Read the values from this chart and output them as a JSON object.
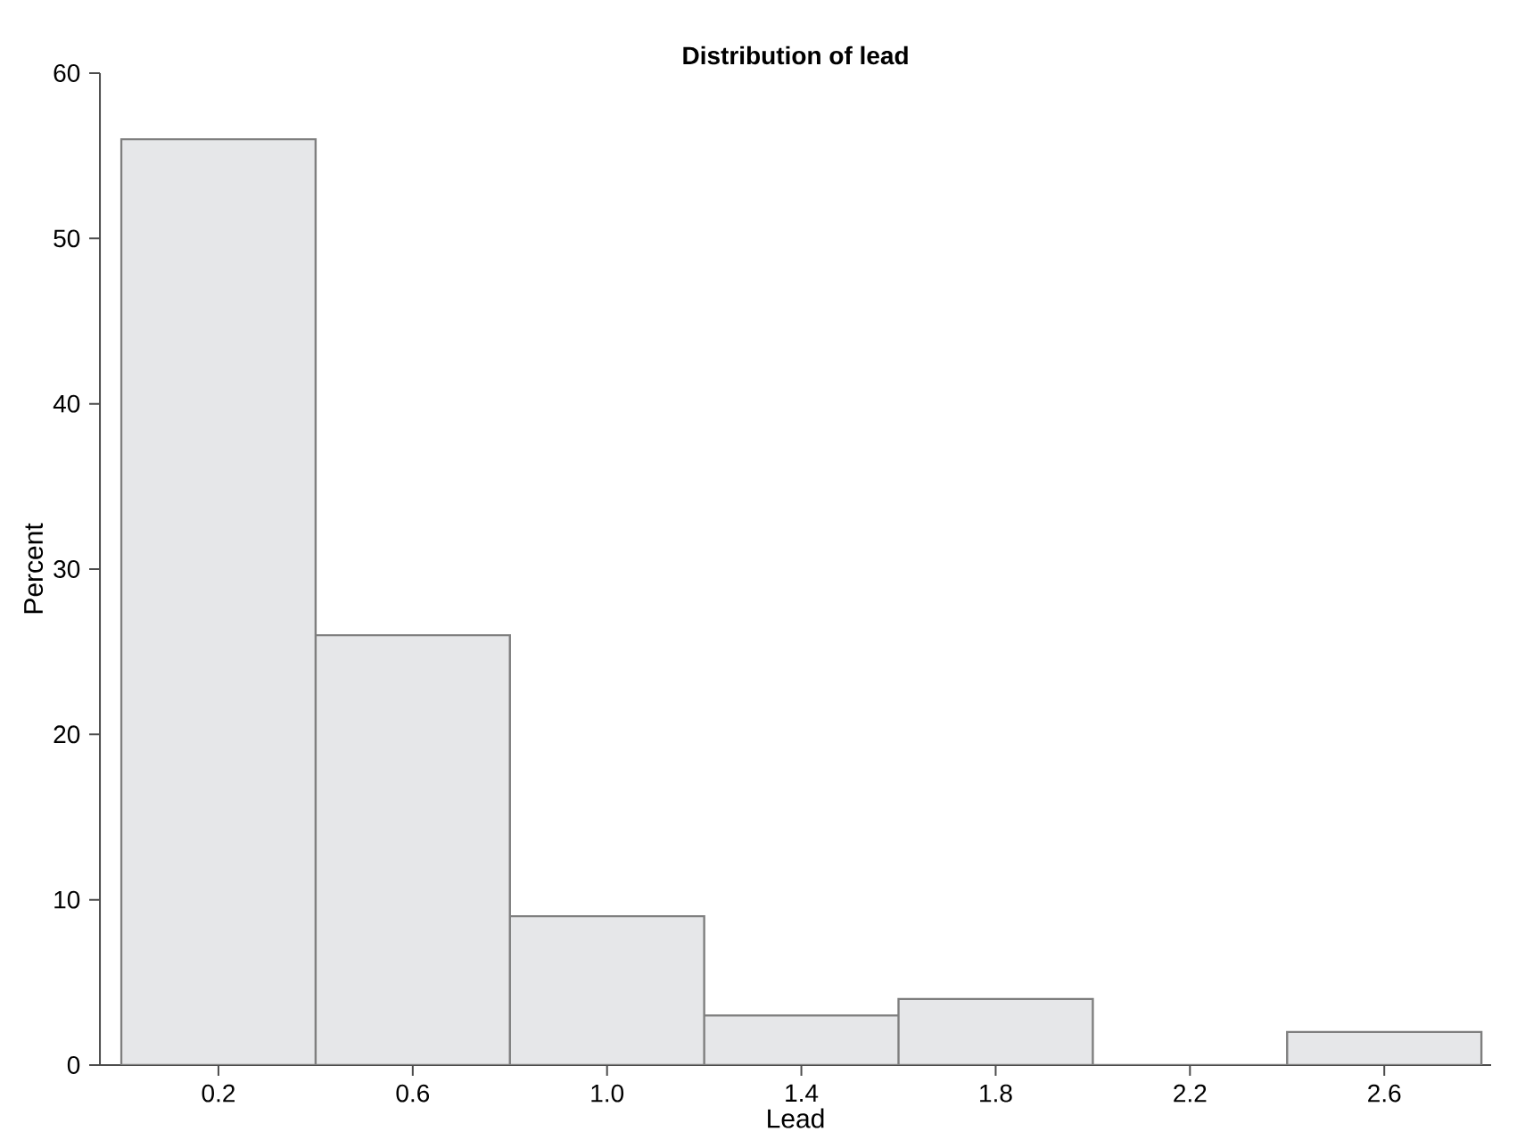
{
  "chart_data": {
    "type": "histogram",
    "title": "Distribution of lead",
    "xlabel": "Lead",
    "ylabel": "Percent",
    "bins": [
      0,
      0.4,
      0.8,
      1.2,
      1.6,
      2.0,
      2.4,
      2.8
    ],
    "values": [
      56,
      26,
      9,
      3,
      4,
      0,
      2
    ],
    "color": "#e6e7e9",
    "xlim": [
      -0.044,
      2.82
    ],
    "ylim": [
      0,
      60
    ],
    "xticks": [
      0.2,
      0.6,
      {
        "value": 1.0,
        "label": "1.0"
      },
      1.4,
      1.8,
      2.2,
      2.6
    ],
    "yticks": [
      0,
      10,
      20,
      30,
      40,
      50,
      60
    ]
  }
}
